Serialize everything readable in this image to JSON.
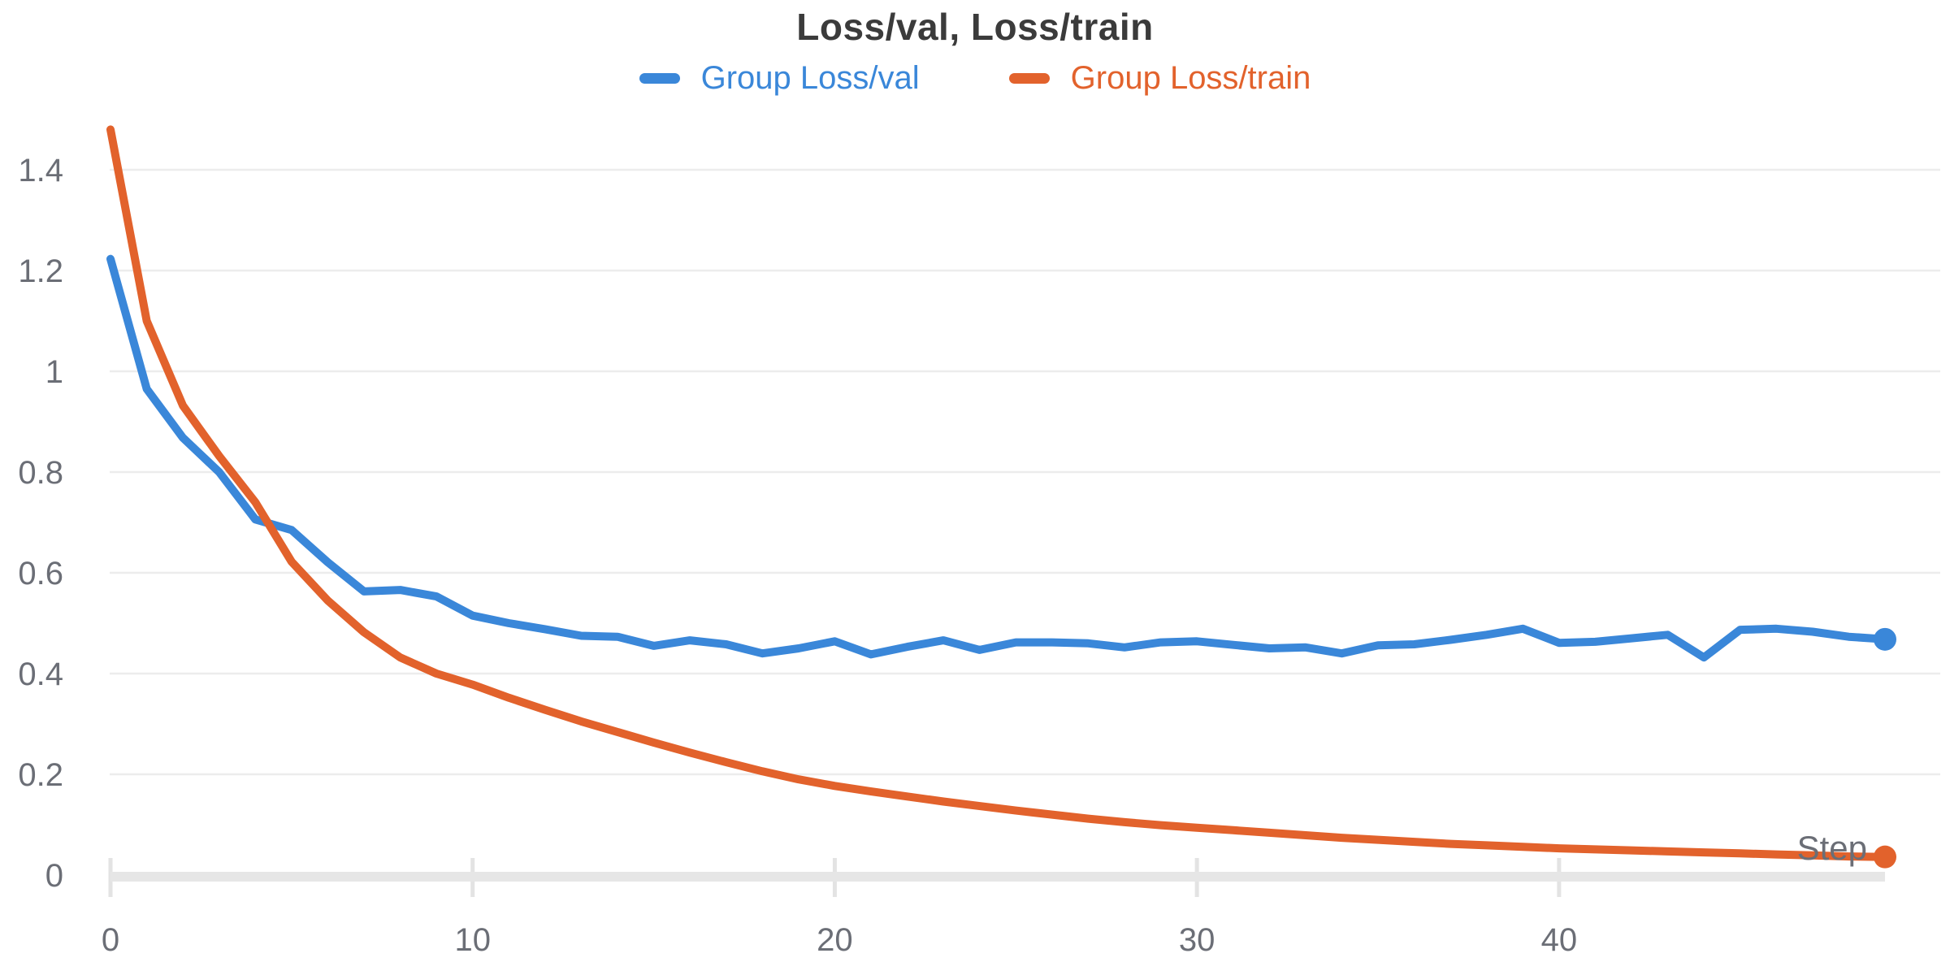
{
  "title": {
    "text": "Loss/val, Loss/train",
    "color": "#3b3b3b"
  },
  "legend": {
    "position": "top",
    "items": [
      {
        "label": "Group Loss/val",
        "color": "#3a87d9"
      },
      {
        "label": "Group Loss/train",
        "color": "#e2622c"
      }
    ]
  },
  "axes": {
    "x": {
      "label": "Step",
      "ticks": [
        {
          "value": 0,
          "label": "0"
        },
        {
          "value": 10,
          "label": "10"
        },
        {
          "value": 20,
          "label": "20"
        },
        {
          "value": 30,
          "label": "30"
        },
        {
          "value": 40,
          "label": "40"
        }
      ]
    },
    "y": {
      "ticks": [
        {
          "value": 0,
          "label": "0"
        },
        {
          "value": 0.2,
          "label": "0.2"
        },
        {
          "value": 0.4,
          "label": "0.4"
        },
        {
          "value": 0.6,
          "label": "0.6"
        },
        {
          "value": 0.8,
          "label": "0.8"
        },
        {
          "value": 1,
          "label": "1"
        },
        {
          "value": 1.2,
          "label": "1.2"
        },
        {
          "value": 1.4,
          "label": "1.4"
        }
      ]
    }
  },
  "styles": {
    "grid_color": "#ececec",
    "axis_band_color": "#e6e6e6",
    "tick_color": "#e3e3e3",
    "label_color": "#6b6e76",
    "line_width": 10,
    "end_dot_radius": 14
  },
  "chart_data": {
    "type": "line",
    "title": "Loss/val, Loss/train",
    "xlabel": "Step",
    "ylabel": "",
    "xlim": [
      0,
      49
    ],
    "ylim": [
      0,
      1.5
    ],
    "grid": true,
    "legend_position": "top",
    "x": [
      0,
      1,
      2,
      3,
      4,
      5,
      6,
      7,
      8,
      9,
      10,
      11,
      12,
      13,
      14,
      15,
      16,
      17,
      18,
      19,
      20,
      21,
      22,
      23,
      24,
      25,
      26,
      27,
      28,
      29,
      30,
      31,
      32,
      33,
      34,
      35,
      36,
      37,
      38,
      39,
      40,
      41,
      42,
      43,
      44,
      45,
      46,
      47,
      48,
      49
    ],
    "series": [
      {
        "name": "Group Loss/val",
        "color": "#3a87d9",
        "values": [
          1.223,
          0.965,
          0.868,
          0.8,
          0.706,
          0.685,
          0.621,
          0.563,
          0.566,
          0.553,
          0.515,
          0.5,
          0.488,
          0.475,
          0.473,
          0.455,
          0.466,
          0.458,
          0.44,
          0.45,
          0.464,
          0.438,
          0.453,
          0.466,
          0.447,
          0.462,
          0.462,
          0.46,
          0.452,
          0.462,
          0.464,
          0.457,
          0.45,
          0.452,
          0.44,
          0.456,
          0.458,
          0.467,
          0.477,
          0.489,
          0.461,
          0.463,
          0.47,
          0.477,
          0.432,
          0.487,
          0.489,
          0.483,
          0.473,
          0.468
        ]
      },
      {
        "name": "Group Loss/train",
        "color": "#e2622c",
        "values": [
          1.48,
          1.1,
          0.932,
          0.832,
          0.74,
          0.622,
          0.545,
          0.482,
          0.432,
          0.4,
          0.378,
          0.352,
          0.328,
          0.305,
          0.284,
          0.263,
          0.243,
          0.224,
          0.206,
          0.19,
          0.177,
          0.166,
          0.156,
          0.146,
          0.137,
          0.128,
          0.12,
          0.112,
          0.105,
          0.099,
          0.094,
          0.089,
          0.084,
          0.079,
          0.074,
          0.07,
          0.066,
          0.062,
          0.059,
          0.056,
          0.053,
          0.051,
          0.049,
          0.047,
          0.045,
          0.043,
          0.041,
          0.039,
          0.037,
          0.036
        ]
      }
    ]
  }
}
